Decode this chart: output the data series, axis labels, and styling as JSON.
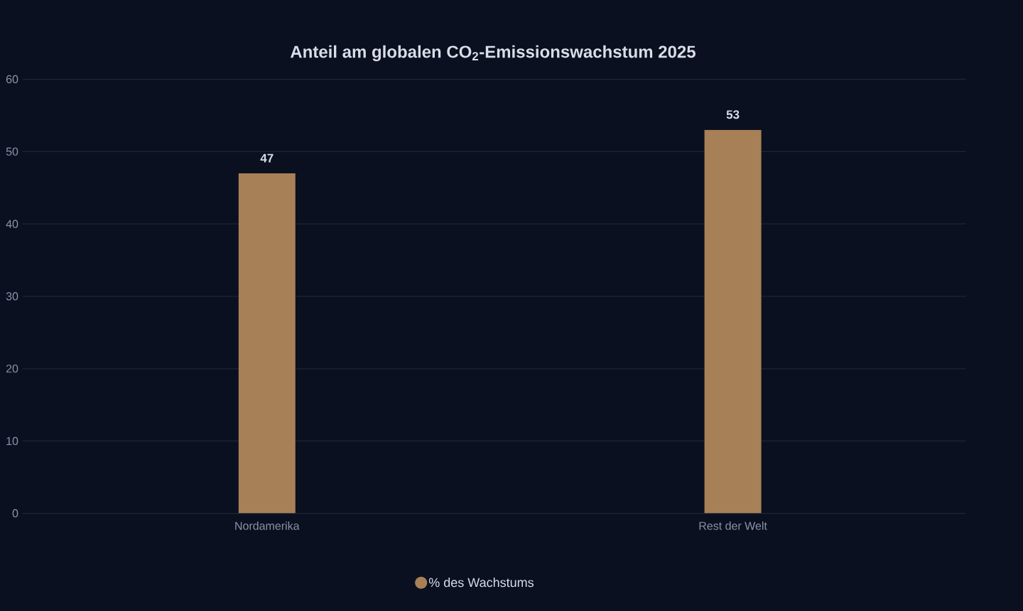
{
  "chart_data": {
    "type": "bar",
    "title": "Anteil am globalen CO$_{2}$-Emissionswachstum 2025",
    "categories": [
      "Nordamerika",
      "Rest der Welt"
    ],
    "series": [
      {
        "name": "% des Wachstums",
        "color": "#a88057",
        "values": [
          47,
          53
        ]
      }
    ],
    "ylim": [
      0,
      60
    ],
    "yticks": [
      0,
      10,
      20,
      30,
      40,
      50,
      60
    ],
    "grid": "y",
    "legend": "bottom",
    "data_labels": true
  }
}
